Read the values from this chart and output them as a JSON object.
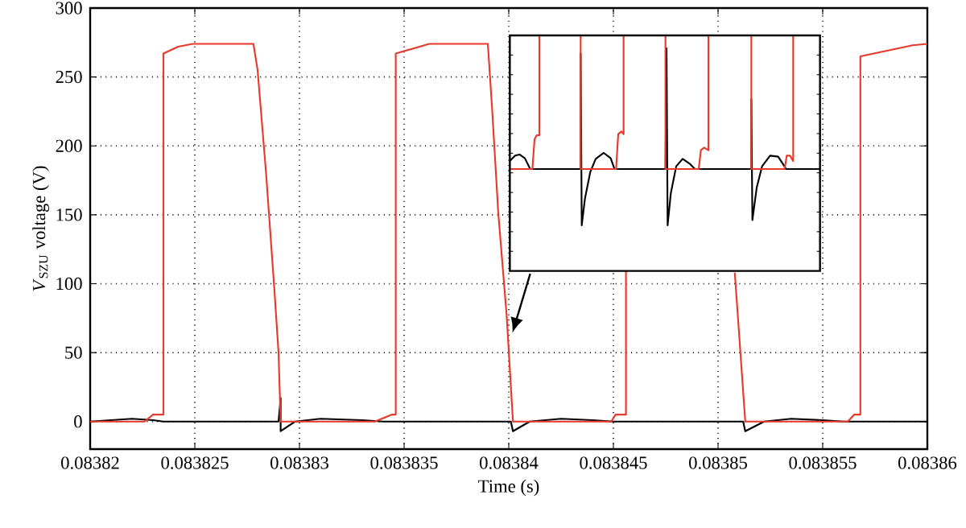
{
  "chart_data": {
    "type": "line",
    "xlabel": "Time (s)",
    "ylabel": "*V*$_{SZU}$ voltage (V)",
    "xlim": [
      0.08382,
      0.08386
    ],
    "ylim": [
      -20,
      300
    ],
    "xticks": [
      0.08382,
      0.083825,
      0.08383,
      0.083835,
      0.08384,
      0.083845,
      0.08385,
      0.083855,
      0.08386
    ],
    "yticks": [
      0,
      50,
      100,
      150,
      200,
      250,
      300
    ],
    "grid": true,
    "series": [
      {
        "color": "#000000",
        "x": [
          0.08382,
          0.083821,
          0.083822,
          0.083823,
          0.0838235,
          0.083829,
          0.0838291,
          0.0838291,
          0.0838298,
          0.083831,
          0.083833,
          0.083834,
          0.0838401,
          0.0838402,
          0.083841,
          0.0838425,
          0.083844,
          0.083845,
          0.0838512,
          0.0838513,
          0.0838522,
          0.0838535,
          0.083855,
          0.083856,
          0.08386
        ],
        "values": [
          0,
          1,
          2,
          1,
          0,
          0,
          17,
          -7,
          0,
          2,
          1,
          0,
          0,
          -7,
          0,
          2,
          1,
          0,
          0,
          -7,
          0,
          2,
          1,
          0,
          0
        ]
      },
      {
        "color": "#e8392a",
        "x": [
          0.08382,
          0.0838226,
          0.083823,
          0.0838235,
          0.0838235,
          0.0838242,
          0.0838249,
          0.0838278,
          0.083828,
          0.0838284,
          0.0838288,
          0.083829,
          0.0838291,
          0.0838336,
          0.0838344,
          0.0838346,
          0.0838346,
          0.0838362,
          0.083839,
          0.0838392,
          0.0838395,
          0.0838399,
          0.0838402,
          0.0838449,
          0.0838451,
          0.0838456,
          0.0838456,
          0.0838506,
          0.0838508,
          0.0838513,
          0.0838562,
          0.0838565,
          0.0838568,
          0.0838568,
          0.0838593,
          0.08386
        ],
        "values": [
          0,
          0,
          5,
          5,
          267,
          272,
          274,
          274,
          255,
          181,
          96,
          50,
          0,
          0,
          5,
          5,
          267,
          274,
          274,
          228,
          151,
          77,
          0,
          0,
          5,
          5,
          110,
          null,
          108,
          0,
          0,
          5,
          5,
          265,
          273,
          274
        ]
      }
    ]
  }
}
